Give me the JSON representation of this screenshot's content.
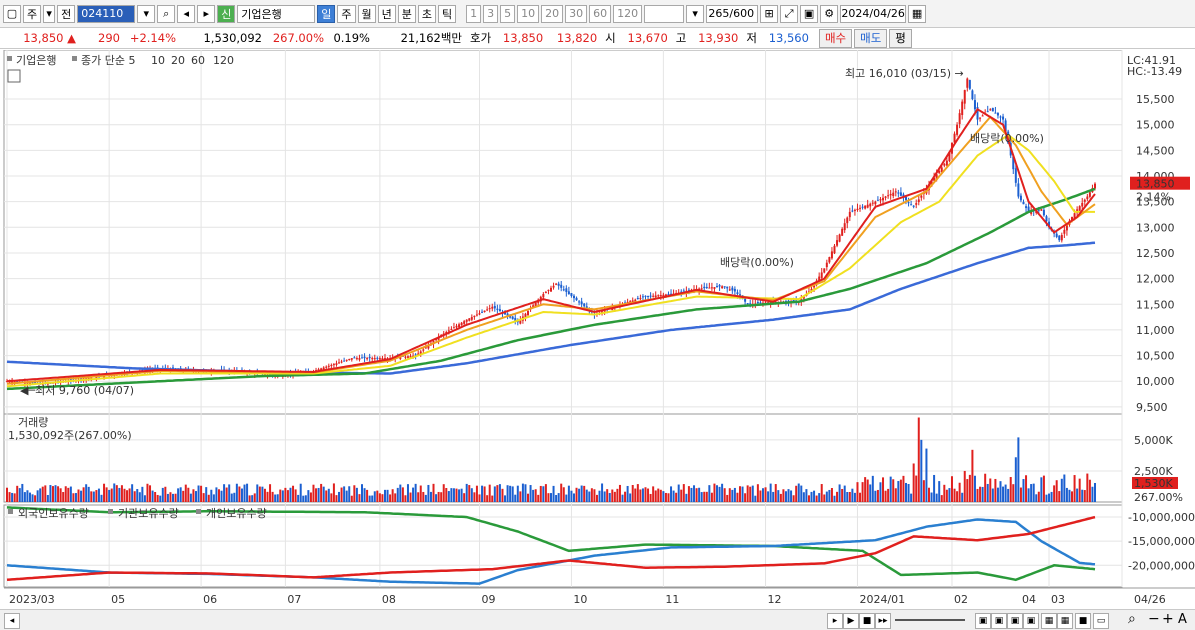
{
  "toolbar": {
    "period_type": "주",
    "prev_label": "전",
    "code": "024110",
    "shin": "신",
    "stock_name": "기업은행",
    "intervals": [
      "일",
      "주",
      "월",
      "년",
      "분",
      "초",
      "틱"
    ],
    "selected_interval": "일",
    "minute_presets": [
      "1",
      "3",
      "5",
      "10",
      "20",
      "30",
      "60",
      "120"
    ],
    "count": "265",
    "count_total": "/600",
    "date": "2024/04/26"
  },
  "quote": {
    "price": "13,850",
    "arrow": "▲",
    "change": "290",
    "change_pct": "+2.14%",
    "volume": "1,530,092",
    "volume_ratio": "267.00%",
    "turnover": "0.19%",
    "amount": "21,162백만",
    "hoga_label": "호가",
    "ask": "13,850",
    "bid": "13,820",
    "open_label": "시",
    "open": "13,670",
    "high_label": "고",
    "high": "13,930",
    "low_label": "저",
    "low": "13,560",
    "buy_label": "매수",
    "sell_label": "매도",
    "avg_label": "평"
  },
  "chart_data": [
    {
      "type": "candlestick",
      "legend": {
        "name": "기업은행",
        "ma_label": "종가 단순",
        "periods": [
          "5",
          "10",
          "20",
          "60",
          "120"
        ],
        "colors": [
          "#e0201e",
          "#f0a020",
          "#f0e020",
          "#2a9a3a",
          "#3a6ad8"
        ]
      },
      "y_ticks": [
        9500,
        10000,
        10500,
        11000,
        11500,
        12000,
        12500,
        13000,
        13500,
        14000,
        14500,
        15000,
        15500
      ],
      "y_tick_labels": [
        "9,500",
        "10,000",
        "10,500",
        "11,000",
        "11,500",
        "12,000",
        "12,500",
        "13,000",
        "13,500",
        "14,000",
        "14,500",
        "15,000",
        "15,500"
      ],
      "ylim": [
        9400,
        16300
      ],
      "lc_label": "LC:41.91",
      "hc_label": "HC:-13.49",
      "current_label": "13,850",
      "current_pct_label": "2.14%",
      "current_value": 13850,
      "max_note": "최고 16,010 (03/15)",
      "min_note": "최저 9,760 (04/07)",
      "dividend_notes": [
        "배당락(0.00%)",
        "배당락(0.00%)"
      ],
      "x_labels": [
        "2023/03",
        "05",
        "06",
        "07",
        "08",
        "09",
        "10",
        "11",
        "12",
        "2024/01",
        "02",
        "03",
        "04",
        "04/26"
      ],
      "close_points": [
        [
          0,
          10000
        ],
        [
          15,
          9950
        ],
        [
          30,
          10050
        ],
        [
          45,
          10150
        ],
        [
          60,
          10250
        ],
        [
          75,
          10200
        ],
        [
          90,
          10200
        ],
        [
          105,
          10100
        ],
        [
          120,
          10200
        ],
        [
          135,
          10450
        ],
        [
          150,
          10450
        ],
        [
          160,
          10500
        ],
        [
          170,
          10900
        ],
        [
          180,
          11200
        ],
        [
          190,
          11450
        ],
        [
          200,
          11150
        ],
        [
          210,
          11700
        ],
        [
          215,
          11900
        ],
        [
          220,
          11700
        ],
        [
          230,
          11300
        ],
        [
          240,
          11500
        ],
        [
          250,
          11650
        ],
        [
          260,
          11700
        ],
        [
          270,
          11800
        ],
        [
          280,
          11850
        ],
        [
          285,
          11750
        ],
        [
          290,
          11500
        ],
        [
          300,
          11550
        ],
        [
          310,
          11550
        ],
        [
          315,
          11800
        ],
        [
          320,
          12200
        ],
        [
          330,
          13300
        ],
        [
          340,
          13500
        ],
        [
          348,
          13700
        ],
        [
          355,
          13400
        ],
        [
          362,
          13900
        ],
        [
          368,
          14300
        ],
        [
          372,
          15000
        ],
        [
          376,
          15900
        ],
        [
          380,
          15100
        ],
        [
          385,
          15300
        ],
        [
          390,
          15100
        ],
        [
          393,
          14400
        ],
        [
          396,
          13600
        ],
        [
          400,
          13300
        ],
        [
          405,
          13350
        ],
        [
          408,
          13000
        ],
        [
          412,
          12750
        ],
        [
          415,
          13050
        ],
        [
          419,
          13350
        ],
        [
          423,
          13600
        ],
        [
          426,
          13850
        ]
      ],
      "ma5_points": [
        [
          0,
          10000
        ],
        [
          60,
          10220
        ],
        [
          120,
          10180
        ],
        [
          150,
          10430
        ],
        [
          180,
          11100
        ],
        [
          210,
          11600
        ],
        [
          230,
          11350
        ],
        [
          270,
          11780
        ],
        [
          300,
          11550
        ],
        [
          320,
          12000
        ],
        [
          340,
          13400
        ],
        [
          360,
          13750
        ],
        [
          372,
          14700
        ],
        [
          380,
          15300
        ],
        [
          390,
          15000
        ],
        [
          400,
          13500
        ],
        [
          410,
          12900
        ],
        [
          419,
          13200
        ],
        [
          426,
          13650
        ]
      ],
      "ma10_points": [
        [
          0,
          9950
        ],
        [
          60,
          10200
        ],
        [
          120,
          10170
        ],
        [
          150,
          10400
        ],
        [
          180,
          11000
        ],
        [
          210,
          11500
        ],
        [
          230,
          11400
        ],
        [
          270,
          11750
        ],
        [
          300,
          11580
        ],
        [
          320,
          11950
        ],
        [
          340,
          13200
        ],
        [
          360,
          13700
        ],
        [
          372,
          14400
        ],
        [
          385,
          15150
        ],
        [
          395,
          14600
        ],
        [
          405,
          13700
        ],
        [
          415,
          13050
        ],
        [
          426,
          13450
        ]
      ],
      "ma20_points": [
        [
          0,
          9900
        ],
        [
          60,
          10150
        ],
        [
          120,
          10150
        ],
        [
          150,
          10300
        ],
        [
          180,
          10850
        ],
        [
          210,
          11350
        ],
        [
          230,
          11300
        ],
        [
          270,
          11650
        ],
        [
          310,
          11600
        ],
        [
          330,
          12200
        ],
        [
          350,
          13100
        ],
        [
          365,
          13500
        ],
        [
          380,
          14400
        ],
        [
          392,
          14800
        ],
        [
          400,
          14500
        ],
        [
          410,
          13900
        ],
        [
          418,
          13300
        ],
        [
          426,
          13300
        ]
      ],
      "ma60_points": [
        [
          0,
          9850
        ],
        [
          60,
          10000
        ],
        [
          100,
          10100
        ],
        [
          140,
          10150
        ],
        [
          170,
          10400
        ],
        [
          200,
          10800
        ],
        [
          230,
          11100
        ],
        [
          270,
          11400
        ],
        [
          310,
          11550
        ],
        [
          330,
          11800
        ],
        [
          360,
          12300
        ],
        [
          385,
          12900
        ],
        [
          400,
          13300
        ],
        [
          415,
          13550
        ],
        [
          426,
          13750
        ]
      ],
      "ma120_points": [
        [
          0,
          10380
        ],
        [
          50,
          10250
        ],
        [
          100,
          10180
        ],
        [
          150,
          10150
        ],
        [
          180,
          10350
        ],
        [
          220,
          10700
        ],
        [
          260,
          11000
        ],
        [
          300,
          11200
        ],
        [
          330,
          11400
        ],
        [
          350,
          11800
        ],
        [
          380,
          12300
        ],
        [
          400,
          12600
        ],
        [
          415,
          12650
        ],
        [
          426,
          12700
        ]
      ]
    },
    {
      "type": "bar",
      "title": "거래량",
      "value_label": "1,530,092주(267.00%)",
      "y_tick_labels": [
        "5,000K",
        "2,500K"
      ],
      "y_ticks": [
        5000,
        2500
      ],
      "ylim": [
        0,
        6600
      ],
      "current_label": "1,530K",
      "current_pct_label": "267.00%",
      "notable": [
        [
          335,
          1600
        ],
        [
          350,
          1800
        ],
        [
          355,
          3100
        ],
        [
          357,
          6800
        ],
        [
          358,
          5000
        ],
        [
          360,
          4300
        ],
        [
          375,
          2500
        ],
        [
          378,
          4200
        ],
        [
          395,
          3600
        ],
        [
          396,
          5200
        ],
        [
          426,
          1530
        ]
      ]
    },
    {
      "type": "line",
      "legend": [
        "외국인보유수량",
        "기관보유수량",
        "개인보유수량"
      ],
      "colors": [
        "#e0201e",
        "#2a7fd0",
        "#2a9a3a"
      ],
      "y_ticks": [
        -10000000,
        -15000000,
        -20000000
      ],
      "y_tick_labels": [
        "-10,000,000",
        "-15,000,000",
        "-20,000,000"
      ],
      "ylim": [
        -24500000,
        -7500000
      ],
      "foreign_points": [
        [
          0,
          -23000000
        ],
        [
          40,
          -21500000
        ],
        [
          80,
          -21700000
        ],
        [
          120,
          -22500000
        ],
        [
          150,
          -21500000
        ],
        [
          190,
          -20800000
        ],
        [
          220,
          -19000000
        ],
        [
          250,
          -20500000
        ],
        [
          280,
          -20300000
        ],
        [
          320,
          -19600000
        ],
        [
          340,
          -17500000
        ],
        [
          355,
          -14000000
        ],
        [
          380,
          -14800000
        ],
        [
          400,
          -13500000
        ],
        [
          426,
          -10000000
        ]
      ],
      "inst_points": [
        [
          0,
          -20000000
        ],
        [
          40,
          -21500000
        ],
        [
          80,
          -21800000
        ],
        [
          120,
          -22500000
        ],
        [
          150,
          -23400000
        ],
        [
          185,
          -23800000
        ],
        [
          200,
          -21000000
        ],
        [
          230,
          -18000000
        ],
        [
          260,
          -16300000
        ],
        [
          300,
          -16000000
        ],
        [
          340,
          -14800000
        ],
        [
          360,
          -12000000
        ],
        [
          380,
          -10500000
        ],
        [
          395,
          -11000000
        ],
        [
          405,
          -15000000
        ],
        [
          420,
          -19500000
        ],
        [
          426,
          -19800000
        ]
      ],
      "indiv_points": [
        [
          0,
          -8000000
        ],
        [
          40,
          -9000000
        ],
        [
          80,
          -8800000
        ],
        [
          140,
          -9000000
        ],
        [
          180,
          -10000000
        ],
        [
          200,
          -13000000
        ],
        [
          220,
          -17000000
        ],
        [
          250,
          -15700000
        ],
        [
          300,
          -16000000
        ],
        [
          335,
          -17000000
        ],
        [
          350,
          -22000000
        ],
        [
          380,
          -21500000
        ],
        [
          395,
          -23000000
        ],
        [
          410,
          -20000000
        ],
        [
          426,
          -20800000
        ]
      ]
    }
  ],
  "scroll": {
    "zoom_minus": "−",
    "zoom_plus": "+",
    "auto": "A"
  }
}
